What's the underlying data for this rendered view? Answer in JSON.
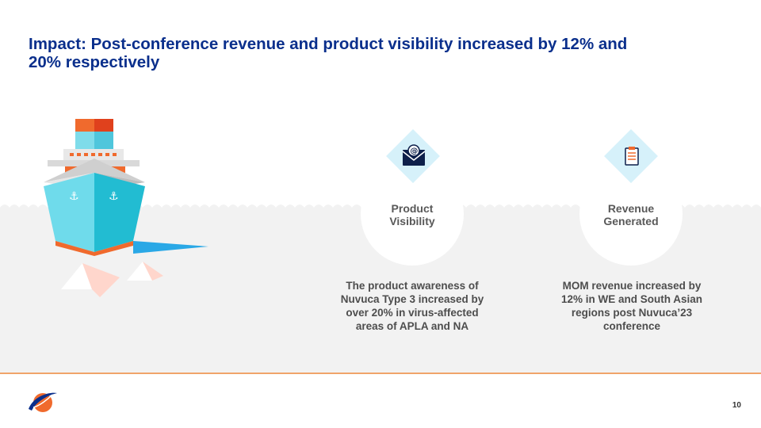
{
  "title": "Impact: Post-conference revenue and product visibility increased by 12% and 20% respectively",
  "cards": [
    {
      "label_line1": "Product",
      "label_line2": "Visibility",
      "icon": "email-icon",
      "description": "The product awareness of Nuvuca Type 3 increased by over 20% in virus-affected areas of APLA and NA"
    },
    {
      "label_line1": "Revenue",
      "label_line2": "Generated",
      "icon": "clipboard-icon",
      "description": "MOM revenue increased by 12% in WE and South Asian regions post Nuvuca’23 conference"
    }
  ],
  "page_number": "10",
  "colors": {
    "title": "#0a2f8c",
    "accent_orange": "#f0a46a",
    "icon_bg": "#d6f1fa",
    "ship_cyan": "#5fd3e6"
  }
}
